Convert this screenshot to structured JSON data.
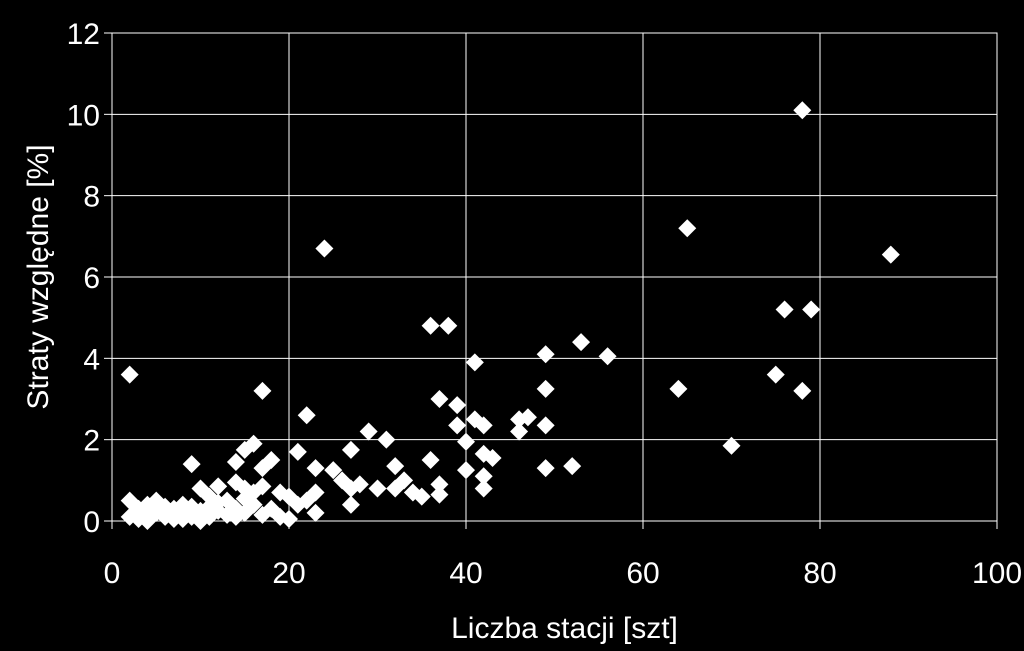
{
  "chart_data": {
    "type": "scatter",
    "xlabel": "Liczba stacji [szt]",
    "ylabel": "Straty względne [%]",
    "xlim": [
      0,
      100
    ],
    "ylim": [
      0,
      12
    ],
    "xticks": [
      0,
      20,
      40,
      60,
      80,
      100
    ],
    "yticks": [
      0,
      2,
      4,
      6,
      8,
      10,
      12
    ],
    "grid": true,
    "colors": {
      "background": "#000000",
      "grid": "#ffffff",
      "marker": "#ffffff",
      "text": "#ffffff"
    },
    "marker": "diamond",
    "points": [
      [
        2,
        3.6
      ],
      [
        17,
        3.2
      ],
      [
        24,
        6.7
      ],
      [
        36,
        4.8
      ],
      [
        38,
        4.8
      ],
      [
        41,
        3.9
      ],
      [
        49,
        4.1
      ],
      [
        53,
        4.4
      ],
      [
        56,
        4.05
      ],
      [
        64,
        3.25
      ],
      [
        65,
        7.2
      ],
      [
        70,
        1.85
      ],
      [
        75,
        3.6
      ],
      [
        76,
        5.2
      ],
      [
        78,
        3.2
      ],
      [
        78,
        10.1
      ],
      [
        79,
        5.2
      ],
      [
        88,
        6.55
      ],
      [
        37,
        3.0
      ],
      [
        39,
        2.85
      ],
      [
        39,
        2.35
      ],
      [
        40,
        1.95
      ],
      [
        41,
        2.5
      ],
      [
        42,
        2.35
      ],
      [
        43,
        1.55
      ],
      [
        42,
        1.65
      ],
      [
        40,
        1.25
      ],
      [
        42,
        1.1
      ],
      [
        42,
        0.8
      ],
      [
        46,
        2.2
      ],
      [
        46,
        2.5
      ],
      [
        47,
        2.55
      ],
      [
        49,
        2.35
      ],
      [
        49,
        3.25
      ],
      [
        49,
        1.3
      ],
      [
        52,
        1.35
      ],
      [
        22,
        2.6
      ],
      [
        21,
        1.7
      ],
      [
        23,
        1.3
      ],
      [
        25,
        1.25
      ],
      [
        26,
        1.0
      ],
      [
        27,
        1.75
      ],
      [
        27,
        0.8
      ],
      [
        27,
        0.4
      ],
      [
        29,
        2.2
      ],
      [
        30,
        0.8
      ],
      [
        31,
        2.0
      ],
      [
        32,
        1.35
      ],
      [
        32,
        0.8
      ],
      [
        33,
        1.0
      ],
      [
        34,
        0.7
      ],
      [
        35,
        0.6
      ],
      [
        36,
        1.5
      ],
      [
        37,
        0.9
      ],
      [
        37,
        0.65
      ],
      [
        28,
        0.9
      ],
      [
        23,
        0.7
      ],
      [
        23,
        0.2
      ],
      [
        22,
        0.5
      ],
      [
        16,
        1.9
      ],
      [
        15,
        1.75
      ],
      [
        14,
        1.45
      ],
      [
        17,
        1.3
      ],
      [
        18,
        1.5
      ],
      [
        9,
        1.4
      ],
      [
        14,
        0.95
      ],
      [
        15,
        0.8
      ],
      [
        16,
        0.7
      ],
      [
        17,
        0.85
      ],
      [
        19,
        0.7
      ],
      [
        20,
        0.6
      ],
      [
        21,
        0.4
      ],
      [
        10,
        0.8
      ],
      [
        11,
        0.6
      ],
      [
        12,
        0.85
      ],
      [
        13,
        0.5
      ],
      [
        18,
        0.3
      ],
      [
        19,
        0.1
      ],
      [
        20,
        0.05
      ],
      [
        15,
        0.2
      ],
      [
        16,
        0.4
      ],
      [
        17,
        0.15
      ],
      [
        2,
        0.5
      ],
      [
        2,
        0.1
      ],
      [
        3,
        0.3
      ],
      [
        3,
        0.05
      ],
      [
        4,
        0.4
      ],
      [
        4,
        0.0
      ],
      [
        5,
        0.2
      ],
      [
        5,
        0.5
      ],
      [
        6,
        0.1
      ],
      [
        6,
        0.35
      ],
      [
        7,
        0.05
      ],
      [
        7,
        0.3
      ],
      [
        8,
        0.2
      ],
      [
        8,
        0.4
      ],
      [
        9,
        0.1
      ],
      [
        9,
        0.35
      ],
      [
        10,
        0.0
      ],
      [
        10,
        0.25
      ],
      [
        11,
        0.35
      ],
      [
        11,
        0.1
      ],
      [
        12,
        0.25
      ],
      [
        12,
        0.45
      ],
      [
        13,
        0.15
      ],
      [
        14,
        0.3
      ],
      [
        14,
        0.1
      ],
      [
        15,
        0.55
      ],
      [
        3,
        0.15
      ],
      [
        4,
        0.25
      ],
      [
        6,
        0.2
      ],
      [
        8,
        0.05
      ]
    ]
  }
}
